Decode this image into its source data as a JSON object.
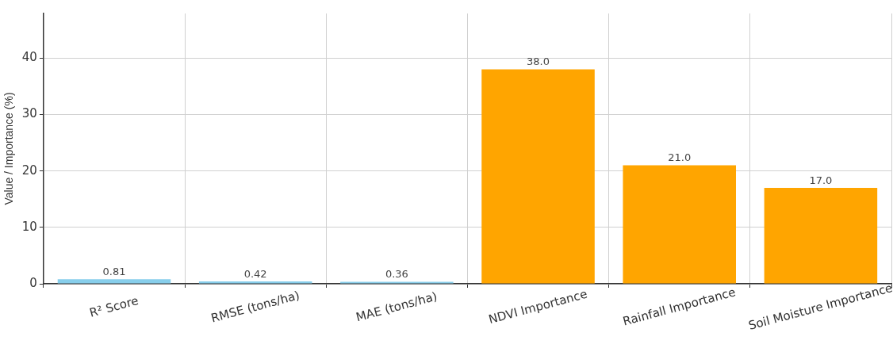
{
  "chart_data": {
    "type": "bar",
    "ylabel": "Value / Importance (%)",
    "categories": [
      "R² Score",
      "RMSE (tons/ha)",
      "MAE (tons/ha)",
      "NDVI Importance",
      "Rainfall Importance",
      "Soil Moisture Importance"
    ],
    "values": [
      0.81,
      0.42,
      0.36,
      38,
      21,
      17
    ],
    "colors": [
      "#87ceeb",
      "#87ceeb",
      "#87ceeb",
      "#ffa500",
      "#ffa500",
      "#ffa500"
    ],
    "value_labels": [
      "0.81",
      "0.42",
      "0.36",
      "38.0",
      "21.0",
      "17.0"
    ],
    "ylim": [
      0,
      47.9
    ],
    "yticks": [
      0,
      10,
      20,
      30,
      40
    ],
    "grid": true
  }
}
